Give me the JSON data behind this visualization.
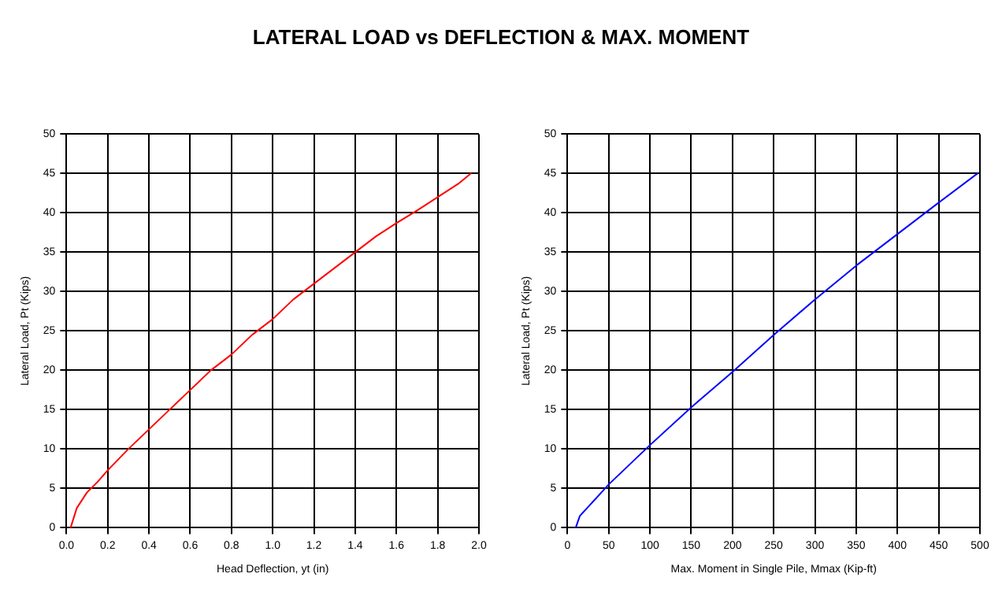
{
  "chart_data": [
    {
      "type": "line",
      "title": "LATERAL LOAD vs DEFLECTION & MAX. MOMENT",
      "xlabel": "Head Deflection, yt (in)",
      "ylabel": "Lateral Load, Pt (Kips)",
      "xlim": [
        0,
        2
      ],
      "xticks": [
        {
          "value": 0,
          "label": "0.0"
        },
        {
          "value": 0.2,
          "label": "0.2"
        },
        {
          "value": 0.4,
          "label": "0.4"
        },
        {
          "value": 0.6,
          "label": "0.6"
        },
        {
          "value": 0.8,
          "label": "0.8"
        },
        {
          "value": 1,
          "label": "1.0"
        },
        {
          "value": 1.2,
          "label": "1.2"
        },
        {
          "value": 1.4,
          "label": "1.4"
        },
        {
          "value": 1.6,
          "label": "1.6"
        },
        {
          "value": 1.8,
          "label": "1.8"
        },
        {
          "value": 2,
          "label": "2.0"
        }
      ],
      "ylim": [
        0,
        50
      ],
      "yticks": [
        0,
        5,
        10,
        15,
        20,
        25,
        30,
        35,
        40,
        45,
        50
      ],
      "grid": true,
      "marker": "none",
      "series": [
        {
          "color": "#ff0000",
          "x": [
            0.02,
            0.05,
            0.1,
            0.15,
            0.2,
            0.3,
            0.4,
            0.5,
            0.6,
            0.7,
            0.8,
            0.9,
            1.0,
            1.1,
            1.2,
            1.3,
            1.4,
            1.5,
            1.6,
            1.7,
            1.8,
            1.9,
            1.96
          ],
          "values": [
            0,
            2.5,
            4.5,
            5.8,
            7.3,
            10,
            12.5,
            15,
            17.5,
            20,
            22,
            24.5,
            26.5,
            29,
            31,
            33,
            35,
            37,
            38.7,
            40.3,
            42,
            43.7,
            45
          ]
        }
      ]
    },
    {
      "type": "line",
      "xlabel": "Max. Moment in Single Pile, Mmax (Kip-ft)",
      "ylabel": "Lateral Load, Pt (Kips)",
      "xlim": [
        0,
        500
      ],
      "xticks": [
        0,
        50,
        100,
        150,
        200,
        250,
        300,
        350,
        400,
        450,
        500
      ],
      "ylim": [
        0,
        50
      ],
      "yticks": [
        0,
        5,
        10,
        15,
        20,
        25,
        30,
        35,
        40,
        45,
        50
      ],
      "grid": true,
      "marker": "none",
      "series": [
        {
          "color": "#0000ff",
          "x": [
            10,
            15,
            50,
            100,
            150,
            200,
            250,
            300,
            350,
            400,
            450,
            497
          ],
          "values": [
            0,
            1.5,
            5.5,
            10.5,
            15.3,
            19.8,
            24.5,
            29,
            33.3,
            37.3,
            41.3,
            45
          ]
        }
      ]
    }
  ]
}
